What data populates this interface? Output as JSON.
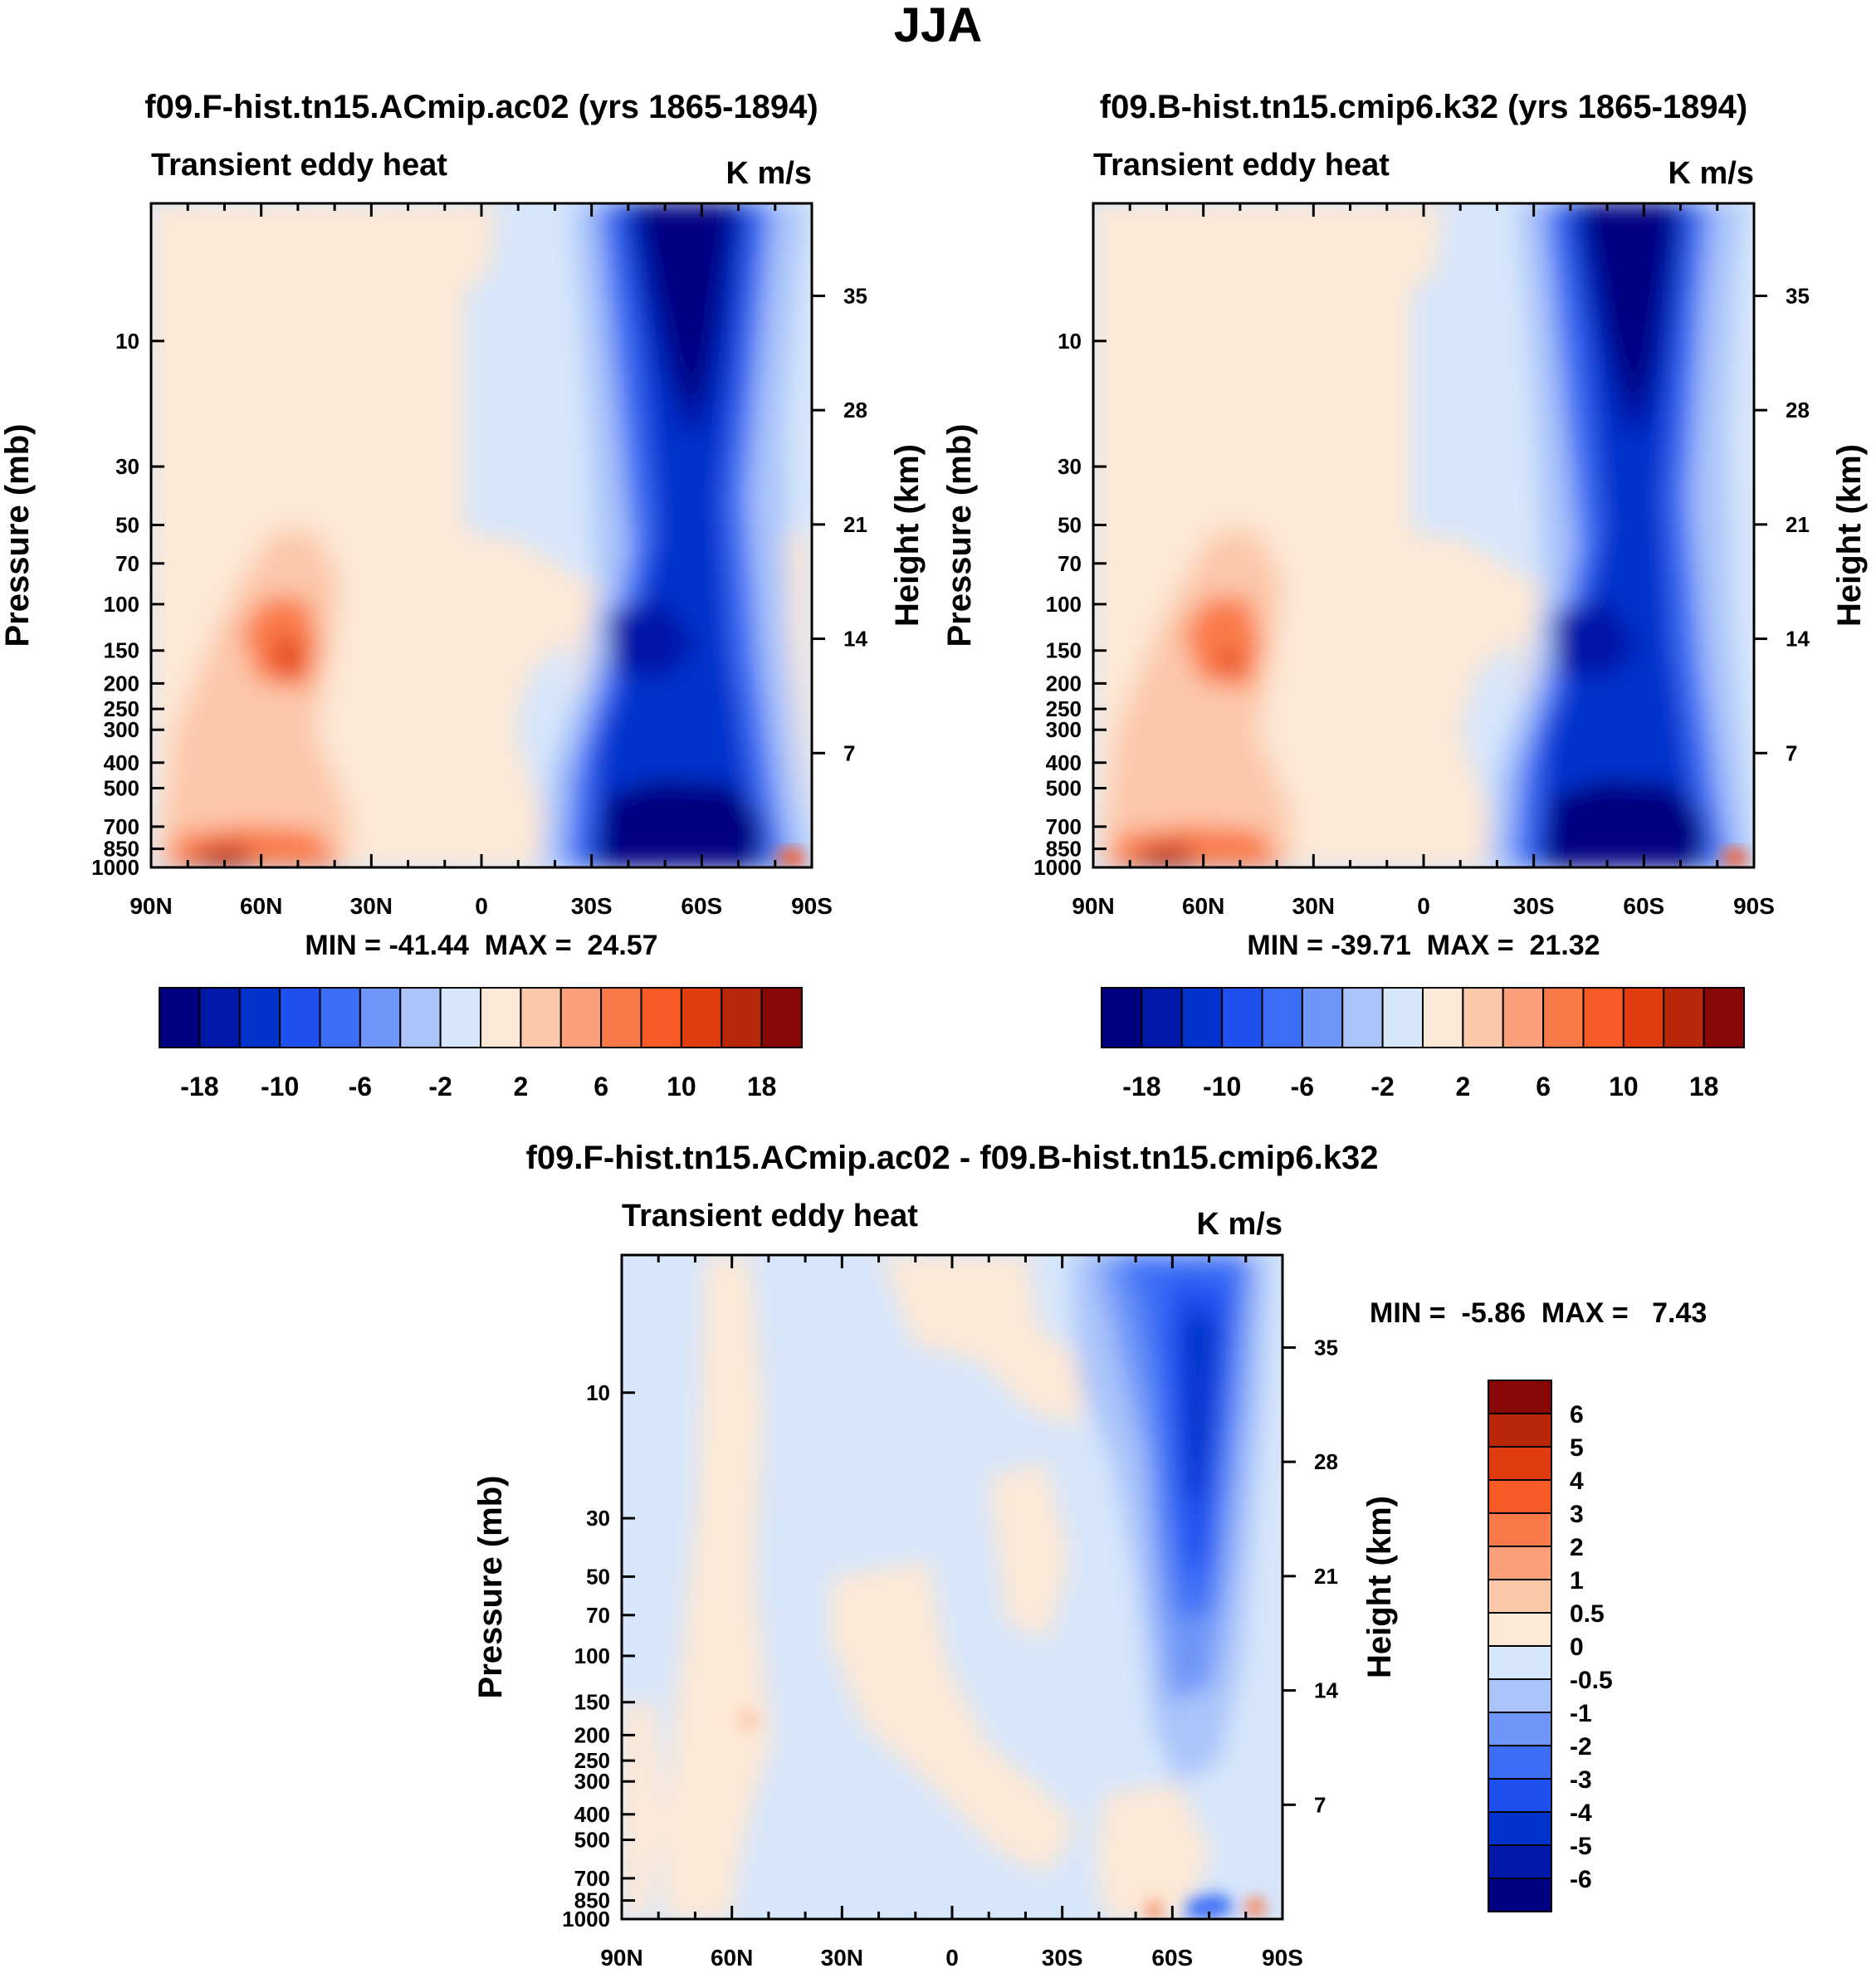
{
  "figure": {
    "title": "JJA",
    "colors": {
      "neg": [
        "#000080",
        "#0018a8",
        "#0033cc",
        "#1e50f0",
        "#3c6ef5",
        "#6e96f8",
        "#aac4fa",
        "#d6e6fb"
      ],
      "pos": [
        "#fde8d6",
        "#fcc8aa",
        "#fba07a",
        "#fa7a4a",
        "#f85a25",
        "#e03c10",
        "#b82808",
        "#880808"
      ]
    }
  },
  "chart_data": [
    {
      "type": "contour",
      "id": "top-left",
      "title": "f09.F-hist.tn15.ACmip.ac02 (yrs 1865-1894)",
      "left_label": "Transient eddy heat",
      "right_label": "K m/s",
      "xlabel": "",
      "ylabel": "Pressure (mb)",
      "ylabel_right": "Height (km)",
      "x_ticks": [
        "90N",
        "60N",
        "30N",
        "0",
        "30S",
        "60S",
        "90S"
      ],
      "x_values": [
        90,
        60,
        30,
        0,
        -30,
        -60,
        -90
      ],
      "y_ticks": [
        "10",
        "30",
        "50",
        "70",
        "100",
        "150",
        "200",
        "250",
        "300",
        "400",
        "500",
        "700",
        "850",
        "1000"
      ],
      "y_values": [
        10,
        30,
        50,
        70,
        100,
        150,
        200,
        250,
        300,
        400,
        500,
        700,
        850,
        1000
      ],
      "y_right_ticks": [
        "35",
        "28",
        "21",
        "14",
        "7"
      ],
      "y_right_values": [
        35,
        28,
        21,
        14,
        7
      ],
      "ylim": [
        1000,
        3
      ],
      "stats_text": "MIN = -41.44  MAX =  24.57",
      "min": -41.44,
      "max": 24.57,
      "levels": [
        -18,
        -14,
        -10,
        -8,
        -6,
        -4,
        -2,
        0,
        2,
        4,
        6,
        8,
        10,
        14,
        18
      ],
      "colorbar": {
        "orientation": "horizontal",
        "labels": [
          "-18",
          "-10",
          "-6",
          "-2",
          "2",
          "6",
          "10",
          "18"
        ]
      }
    },
    {
      "type": "contour",
      "id": "top-right",
      "title": "f09.B-hist.tn15.cmip6.k32 (yrs 1865-1894)",
      "left_label": "Transient eddy heat",
      "right_label": "K m/s",
      "xlabel": "",
      "ylabel": "Pressure (mb)",
      "ylabel_right": "Height (km)",
      "x_ticks": [
        "90N",
        "60N",
        "30N",
        "0",
        "30S",
        "60S",
        "90S"
      ],
      "x_values": [
        90,
        60,
        30,
        0,
        -30,
        -60,
        -90
      ],
      "y_ticks": [
        "10",
        "30",
        "50",
        "70",
        "100",
        "150",
        "200",
        "250",
        "300",
        "400",
        "500",
        "700",
        "850",
        "1000"
      ],
      "y_values": [
        10,
        30,
        50,
        70,
        100,
        150,
        200,
        250,
        300,
        400,
        500,
        700,
        850,
        1000
      ],
      "y_right_ticks": [
        "35",
        "28",
        "21",
        "14",
        "7"
      ],
      "y_right_values": [
        35,
        28,
        21,
        14,
        7
      ],
      "ylim": [
        1000,
        3
      ],
      "stats_text": "MIN = -39.71  MAX =  21.32",
      "min": -39.71,
      "max": 21.32,
      "levels": [
        -18,
        -14,
        -10,
        -8,
        -6,
        -4,
        -2,
        0,
        2,
        4,
        6,
        8,
        10,
        14,
        18
      ],
      "colorbar": {
        "orientation": "horizontal",
        "labels": [
          "-18",
          "-10",
          "-6",
          "-2",
          "2",
          "6",
          "10",
          "18"
        ]
      }
    },
    {
      "type": "contour",
      "id": "bottom-diff",
      "title": "f09.F-hist.tn15.ACmip.ac02 - f09.B-hist.tn15.cmip6.k32",
      "left_label": "Transient eddy heat",
      "right_label": "K m/s",
      "xlabel": "",
      "ylabel": "Pressure (mb)",
      "ylabel_right": "Height (km)",
      "x_ticks": [
        "90N",
        "60N",
        "30N",
        "0",
        "30S",
        "60S",
        "90S"
      ],
      "x_values": [
        90,
        60,
        30,
        0,
        -30,
        -60,
        -90
      ],
      "y_ticks": [
        "10",
        "30",
        "50",
        "70",
        "100",
        "150",
        "200",
        "250",
        "300",
        "400",
        "500",
        "700",
        "850",
        "1000"
      ],
      "y_values": [
        10,
        30,
        50,
        70,
        100,
        150,
        200,
        250,
        300,
        400,
        500,
        700,
        850,
        1000
      ],
      "y_right_ticks": [
        "35",
        "28",
        "21",
        "14",
        "7"
      ],
      "y_right_values": [
        35,
        28,
        21,
        14,
        7
      ],
      "ylim": [
        1000,
        3
      ],
      "stats_text": "MIN =  -5.86  MAX =   7.43",
      "min": -5.86,
      "max": 7.43,
      "levels": [
        -6,
        -5,
        -4,
        -3,
        -2,
        -1,
        -0.5,
        0,
        0.5,
        1,
        2,
        3,
        4,
        5,
        6
      ],
      "colorbar": {
        "orientation": "vertical",
        "labels": [
          "6",
          "5",
          "4",
          "3",
          "2",
          "1",
          "0.5",
          "0",
          "-0.5",
          "-1",
          "-2",
          "-3",
          "-4",
          "-5",
          "-6"
        ]
      }
    }
  ]
}
